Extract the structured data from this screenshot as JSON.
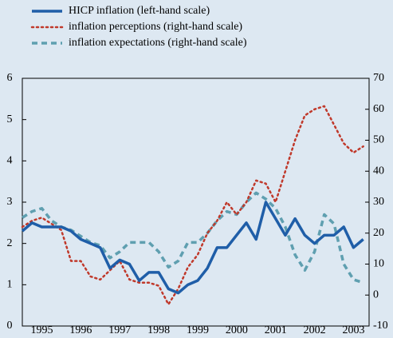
{
  "chart_data": {
    "type": "line",
    "x": [
      1995.0,
      1995.25,
      1995.5,
      1995.75,
      1996.0,
      1996.25,
      1996.5,
      1996.75,
      1997.0,
      1997.25,
      1997.5,
      1997.75,
      1998.0,
      1998.25,
      1998.5,
      1998.75,
      1999.0,
      1999.25,
      1999.5,
      1999.75,
      2000.0,
      2000.25,
      2000.5,
      2000.75,
      2001.0,
      2001.25,
      2001.5,
      2001.75,
      2002.0,
      2002.25,
      2002.5,
      2002.75,
      2003.0,
      2003.25,
      2003.5,
      2003.75
    ],
    "series": [
      {
        "name": "HICP inflation (left-hand scale)",
        "color": "#1f5ea8",
        "style": "solid",
        "axis": "y",
        "values": [
          2.3,
          2.5,
          2.4,
          2.4,
          2.4,
          2.3,
          2.1,
          2.0,
          1.9,
          1.4,
          1.6,
          1.5,
          1.1,
          1.3,
          1.3,
          0.9,
          0.8,
          1.0,
          1.1,
          1.4,
          1.9,
          1.9,
          2.2,
          2.5,
          2.1,
          3.0,
          2.6,
          2.2,
          2.6,
          2.2,
          2.0,
          2.2,
          2.2,
          2.4,
          1.9,
          2.1
        ]
      },
      {
        "name": "inflation perceptions (right-hand scale)",
        "color": "#c0392b",
        "style": "dotted",
        "axis": "y2",
        "values": [
          22,
          24,
          25,
          23,
          21,
          11,
          11,
          6,
          5,
          8,
          11,
          5,
          4,
          4,
          3,
          -3,
          2,
          9,
          13,
          20,
          24,
          30,
          26,
          30,
          37,
          36,
          30,
          40,
          50,
          58,
          60,
          61,
          55,
          49,
          46,
          48
        ]
      },
      {
        "name": "inflation expectations (right-hand scale)",
        "color": "#5f9fb0",
        "style": "dashed",
        "axis": "y2",
        "values": [
          25,
          27,
          28,
          24,
          22,
          21,
          19,
          17,
          16,
          12,
          14,
          17,
          17,
          17,
          14,
          9,
          11,
          17,
          17,
          20,
          24,
          27,
          26,
          30,
          33,
          31,
          28,
          22,
          13,
          8,
          14,
          26,
          23,
          10,
          5,
          4
        ]
      }
    ],
    "xlim": [
      1995.0,
      2003.9
    ],
    "xticks": [
      {
        "value": 1995.5,
        "label": "1995"
      },
      {
        "value": 1996.5,
        "label": "1996"
      },
      {
        "value": 1997.5,
        "label": "1997"
      },
      {
        "value": 1998.5,
        "label": "1998"
      },
      {
        "value": 1999.5,
        "label": "1999"
      },
      {
        "value": 2000.5,
        "label": "2000"
      },
      {
        "value": 2001.5,
        "label": "2001"
      },
      {
        "value": 2002.5,
        "label": "2002"
      },
      {
        "value": 2003.5,
        "label": "2003"
      }
    ],
    "ylim": [
      0,
      6
    ],
    "yticks": [
      0,
      1,
      2,
      3,
      4,
      5,
      6
    ],
    "y2lim": [
      -10,
      70
    ],
    "y2ticks": [
      -10,
      0,
      10,
      20,
      30,
      40,
      50,
      60,
      70
    ]
  }
}
